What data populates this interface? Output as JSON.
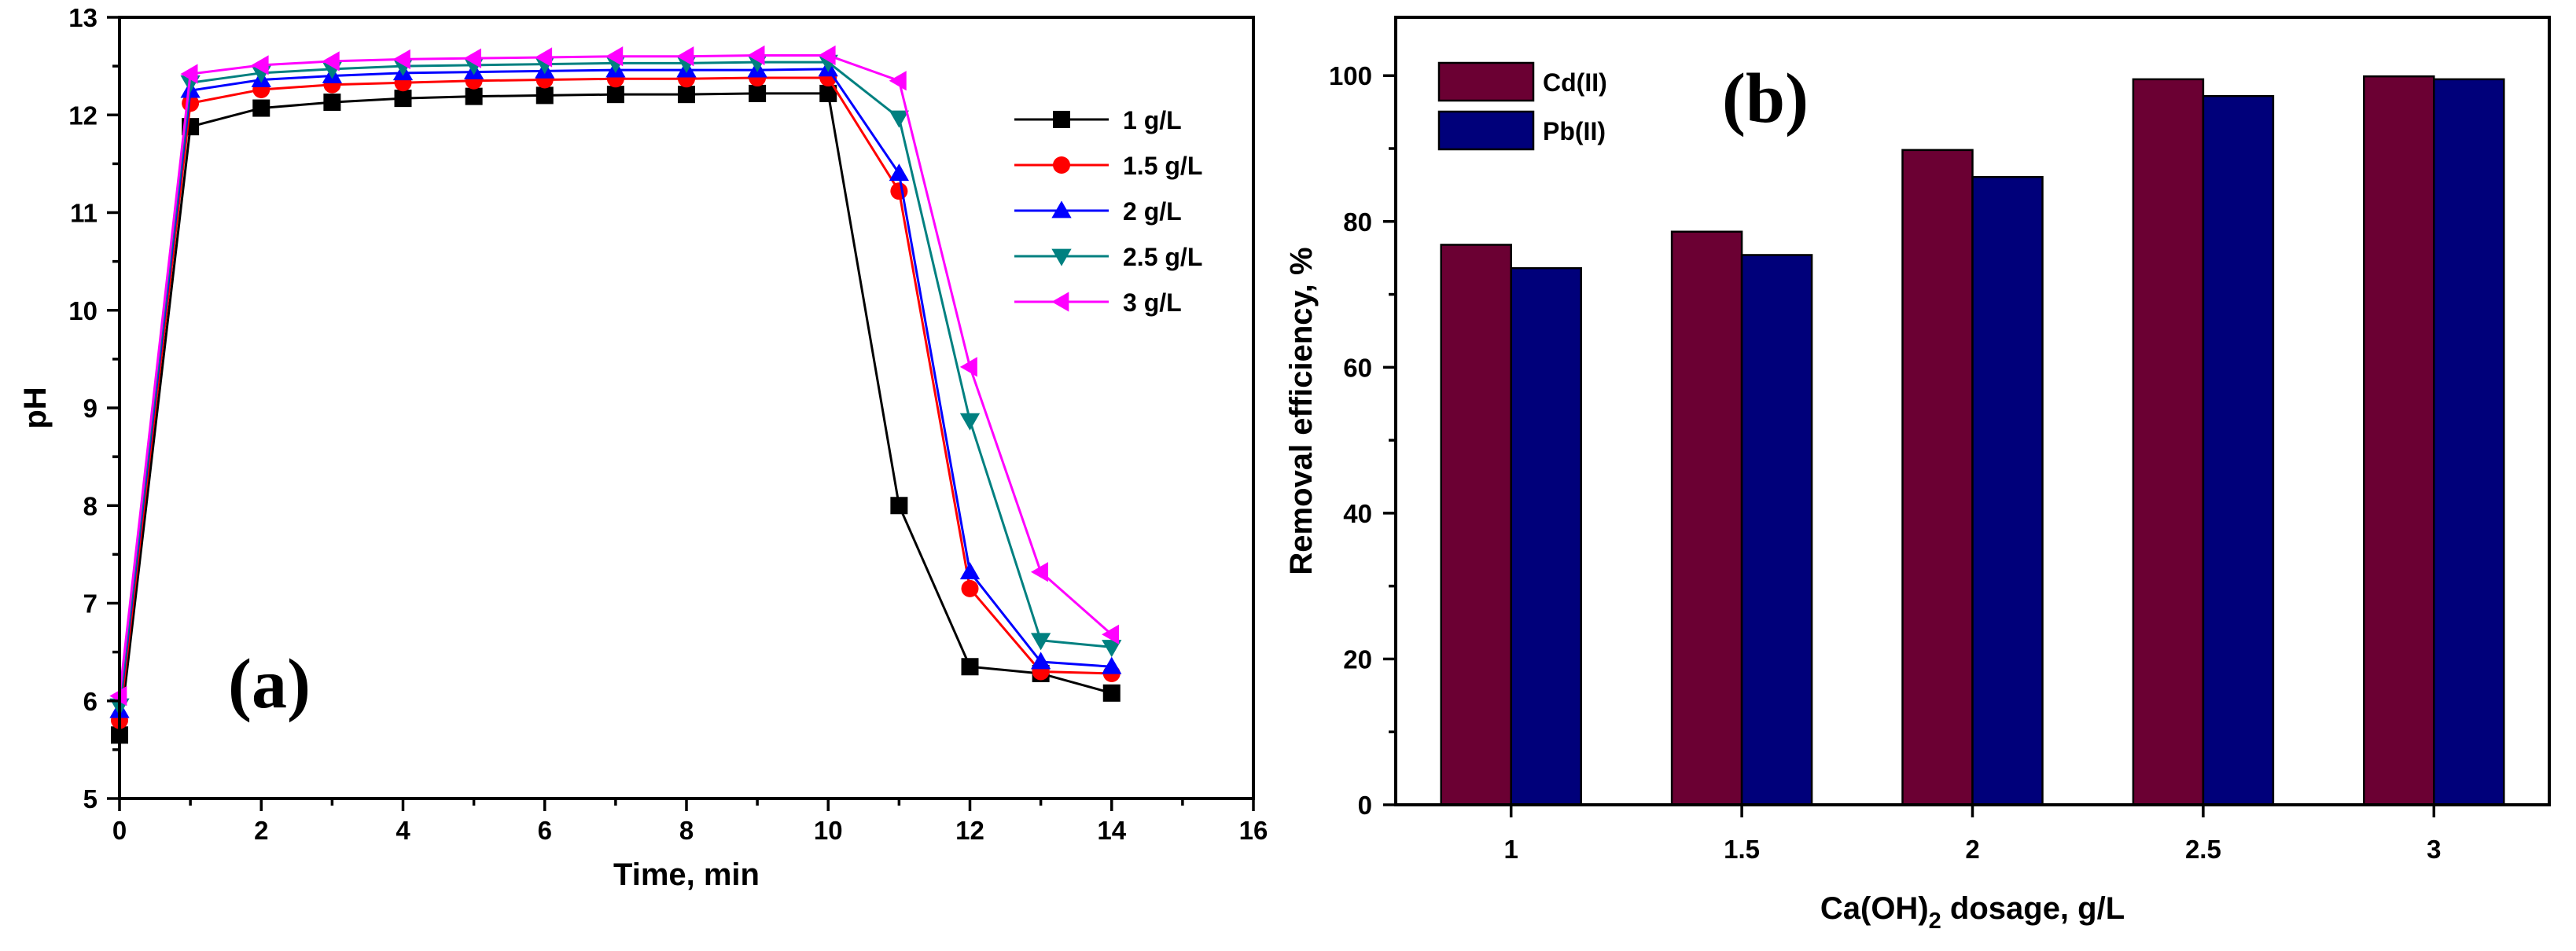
{
  "chart_data": [
    {
      "type": "line",
      "panel_label": "(a)",
      "xlabel": "Time, min",
      "ylabel": "pH",
      "xlim": [
        0,
        16
      ],
      "ylim": [
        5,
        13
      ],
      "x_ticks": [
        "0",
        "2",
        "4",
        "6",
        "8",
        "10",
        "12",
        "14",
        "16"
      ],
      "y_ticks": [
        "5",
        "6",
        "7",
        "8",
        "9",
        "10",
        "11",
        "12",
        "13"
      ],
      "legend_position": "top-right",
      "x": [
        0,
        1,
        2,
        3,
        4,
        5,
        6,
        7,
        8,
        9,
        10,
        11,
        12,
        13,
        14
      ],
      "series": [
        {
          "name": "1 g/L",
          "color": "#000000",
          "marker": "square",
          "values": [
            5.65,
            11.88,
            12.07,
            12.13,
            12.17,
            12.19,
            12.2,
            12.21,
            12.21,
            12.22,
            12.22,
            8.0,
            6.35,
            6.28,
            6.08
          ]
        },
        {
          "name": "1.5 g/L",
          "color": "#ff0000",
          "marker": "circle",
          "values": [
            5.8,
            12.12,
            12.26,
            12.31,
            12.33,
            12.35,
            12.36,
            12.37,
            12.37,
            12.38,
            12.38,
            11.22,
            7.15,
            6.3,
            6.28
          ]
        },
        {
          "name": "2 g/L",
          "color": "#0000ff",
          "marker": "triangle-up",
          "values": [
            5.9,
            12.25,
            12.36,
            12.4,
            12.43,
            12.44,
            12.45,
            12.46,
            12.46,
            12.46,
            12.47,
            11.4,
            7.32,
            6.4,
            6.35
          ]
        },
        {
          "name": "2.5 g/L",
          "color": "#008080",
          "marker": "triangle-down",
          "values": [
            5.95,
            12.33,
            12.43,
            12.47,
            12.5,
            12.51,
            12.52,
            12.53,
            12.53,
            12.54,
            12.54,
            11.97,
            8.87,
            6.62,
            6.55
          ]
        },
        {
          "name": "3 g/L",
          "color": "#ff00ff",
          "marker": "triangle-left",
          "values": [
            6.05,
            12.42,
            12.51,
            12.55,
            12.57,
            12.58,
            12.59,
            12.6,
            12.6,
            12.61,
            12.61,
            12.35,
            9.42,
            7.32,
            6.68
          ]
        }
      ]
    },
    {
      "type": "bar",
      "panel_label": "(b)",
      "xlabel_prefix": "Ca(OH)",
      "xlabel_sub": "2",
      "xlabel_suffix": " dosage, g/L",
      "ylabel": "Removal efficiency, %",
      "ylim": [
        0,
        108
      ],
      "y_ticks": [
        "0",
        "20",
        "40",
        "60",
        "80",
        "100"
      ],
      "categories": [
        "1",
        "1.5",
        "2",
        "2.5",
        "3"
      ],
      "legend_position": "top-left",
      "series": [
        {
          "name": "Cd(II)",
          "color": "#6b0033",
          "values": [
            76.8,
            78.6,
            89.8,
            99.5,
            99.9
          ]
        },
        {
          "name": "Pb(II)",
          "color": "#00007a",
          "values": [
            73.6,
            75.4,
            86.1,
            97.2,
            99.5
          ]
        }
      ]
    }
  ]
}
